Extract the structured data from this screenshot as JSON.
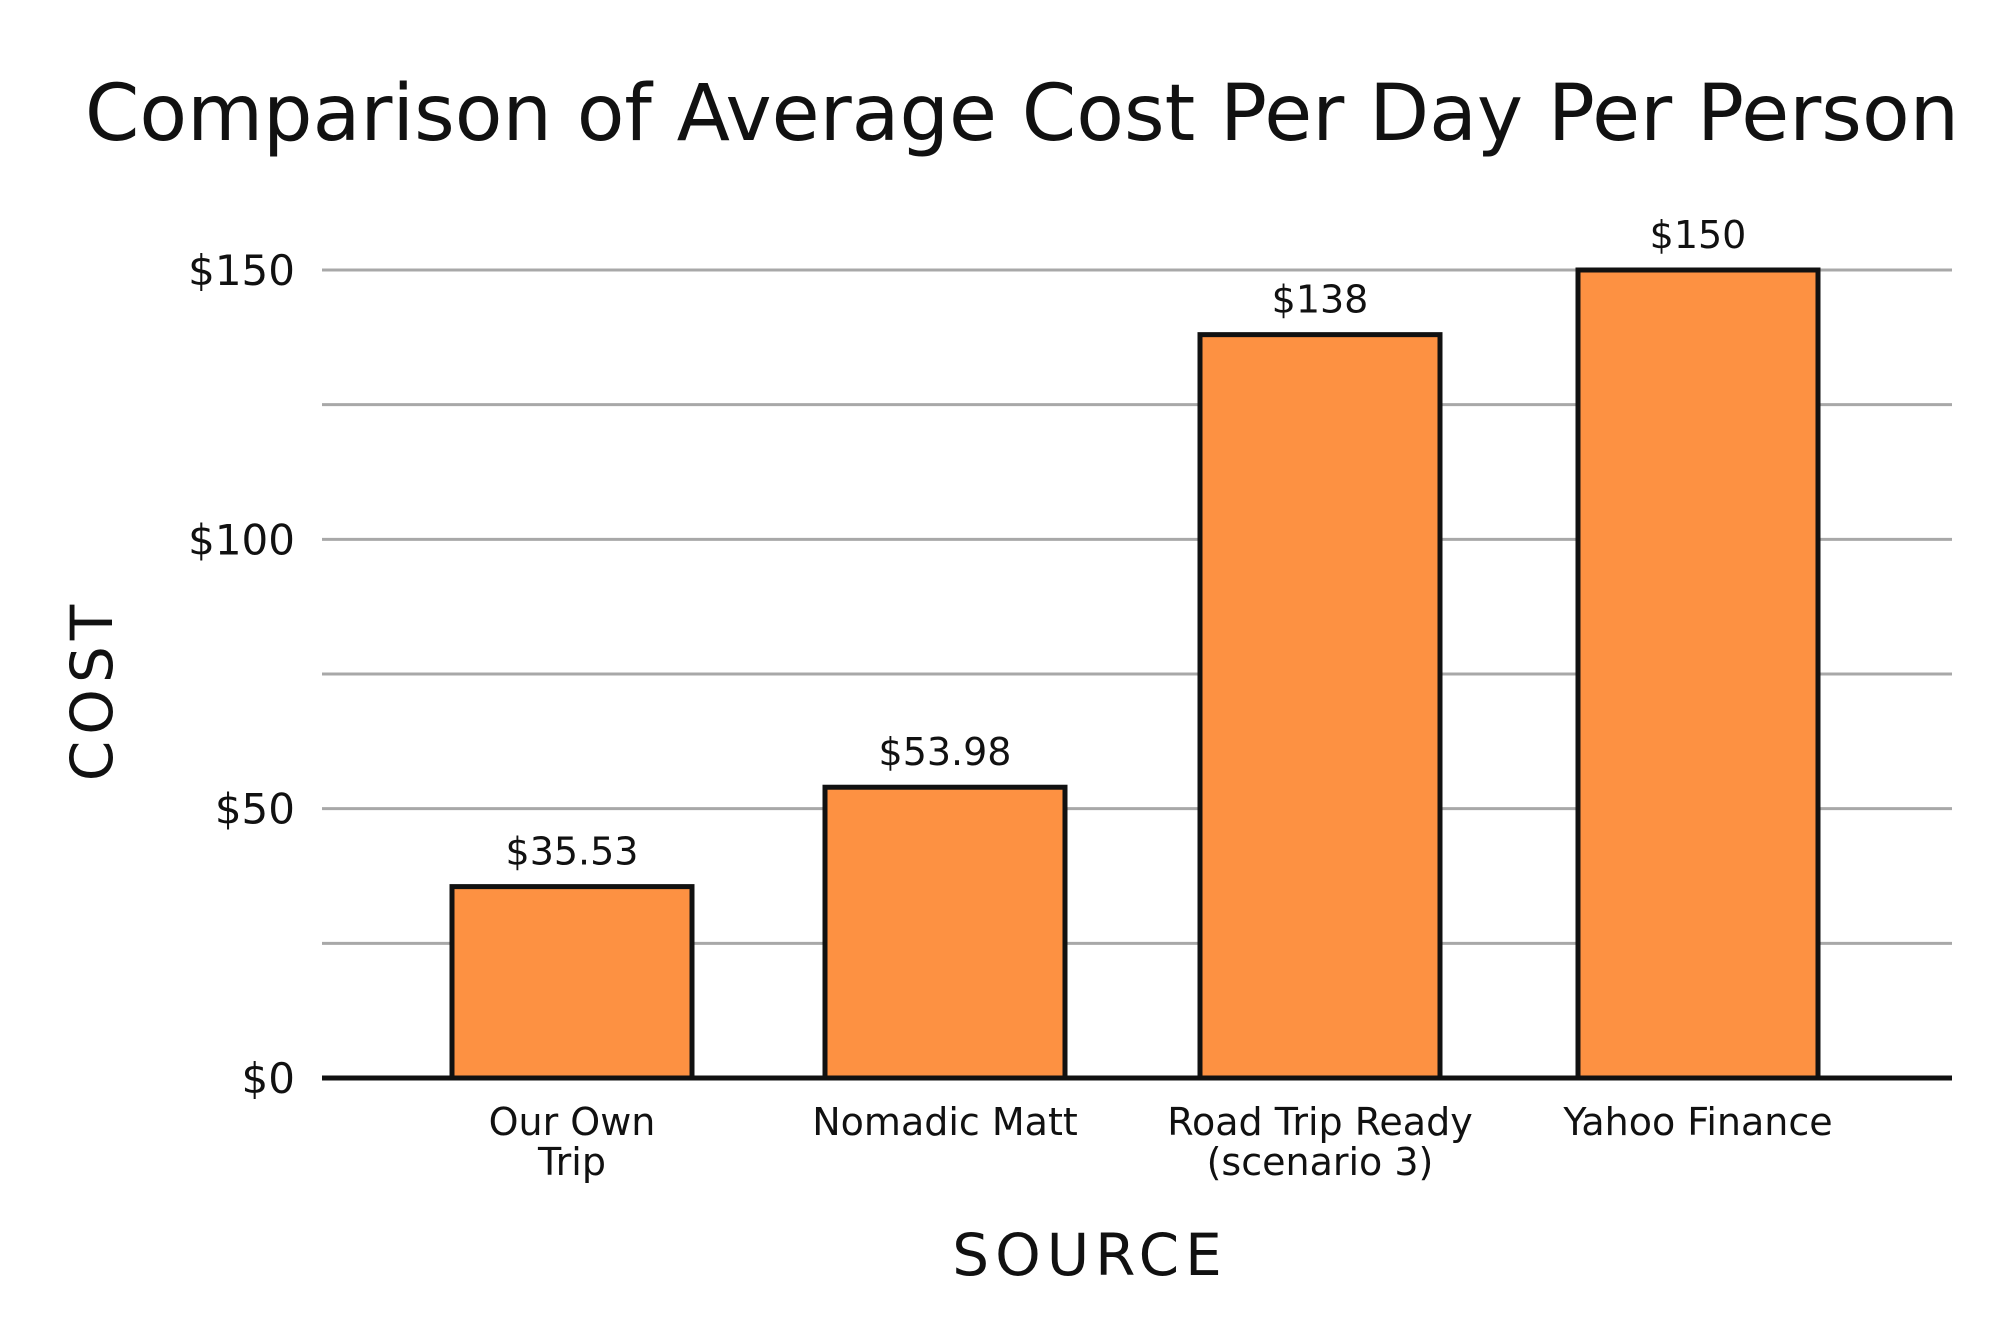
{
  "chart_data": {
    "type": "bar",
    "title": "Comparison of Average Cost Per Day Per Person",
    "xlabel": "SOURCE",
    "ylabel": "COST",
    "categories": [
      [
        "Our Own",
        "Trip"
      ],
      [
        "Nomadic Matt"
      ],
      [
        "Road Trip Ready",
        "(scenario 3)"
      ],
      [
        "Yahoo Finance"
      ]
    ],
    "values": [
      35.53,
      53.98,
      138,
      150
    ],
    "data_labels": [
      "$35.53",
      "$53.98",
      "$138",
      "$150"
    ],
    "ylim": [
      0,
      150
    ],
    "y_ticks": [
      0,
      50,
      100,
      150
    ],
    "y_tick_labels": [
      "$0",
      "$50",
      "$100",
      "$150"
    ],
    "minor_gridlines": [
      25,
      75,
      125
    ],
    "grid": true,
    "legend": "none",
    "colors": {
      "bar_fill": "#fd9142",
      "bar_stroke": "#111111",
      "gridline": "#a8a8a8",
      "text": "#111111"
    }
  }
}
